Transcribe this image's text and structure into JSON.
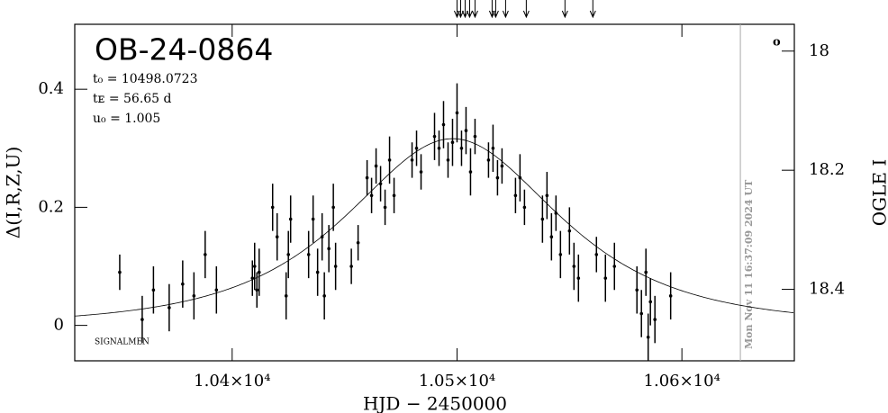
{
  "chart_data": {
    "type": "scatter",
    "title": "OB-24-0864",
    "annotations": [
      "t₀ = 10498.0723",
      "tᴇ = 56.65 d",
      "u₀ = 1.005",
      "SIGNALMEN",
      "Mon Nov 11 16:37:09 2024 UT",
      "o"
    ],
    "xlabel": "HJD − 2450000",
    "ylabel": "Δ(I,R,Z,U)",
    "y2label": "OGLE I",
    "xlim": [
      10330,
      10650
    ],
    "ylim": [
      -0.06,
      0.51
    ],
    "y2lim": [
      18.52,
      17.955
    ],
    "xticks": [
      {
        "value": 10400,
        "label": "1.04×10⁴"
      },
      {
        "value": 10500,
        "label": "1.05×10⁴"
      },
      {
        "value": 10600,
        "label": "1.06×10⁴"
      }
    ],
    "yticks": [
      0,
      0.2,
      0.4
    ],
    "y2ticks": [
      18,
      18.2,
      18.4
    ],
    "color": "#000000",
    "model": {
      "t0": 10498.0723,
      "tE": 56.65,
      "u0": 1.005
    },
    "arrows": [
      10500,
      10501.6,
      10503.6,
      10505.6,
      10508,
      10515.6,
      10517.2,
      10521.6,
      10530.8,
      10548,
      10560.4
    ],
    "now_hjd": 10626,
    "x": [
      10350,
      10360,
      10365,
      10372,
      10378,
      10383,
      10388,
      10393,
      10409,
      10410,
      10411,
      10412,
      10418,
      10420,
      10424,
      10425,
      10426,
      10434,
      10436,
      10438,
      10440,
      10441,
      10443,
      10445,
      10446,
      10453,
      10456,
      10460,
      10462,
      10464,
      10466,
      10468,
      10470,
      10472,
      10480,
      10482,
      10484,
      10490,
      10492,
      10494,
      10496,
      10498,
      10500,
      10502,
      10504,
      10506,
      10508,
      10514,
      10516,
      10518,
      10520,
      10526,
      10528,
      10530,
      10538,
      10540,
      10542,
      10544,
      10546,
      10550,
      10552,
      10554,
      10562,
      10566,
      10570,
      10580,
      10582,
      10584,
      10585,
      10586,
      10588,
      10595
    ],
    "values": [
      0.09,
      0.01,
      0.06,
      0.03,
      0.07,
      0.05,
      0.12,
      0.06,
      0.08,
      0.1,
      0.06,
      0.09,
      0.2,
      0.15,
      0.05,
      0.12,
      0.18,
      0.12,
      0.18,
      0.09,
      0.15,
      0.05,
      0.13,
      0.2,
      0.1,
      0.1,
      0.14,
      0.25,
      0.22,
      0.27,
      0.24,
      0.2,
      0.28,
      0.22,
      0.28,
      0.3,
      0.26,
      0.32,
      0.3,
      0.34,
      0.28,
      0.31,
      0.36,
      0.3,
      0.33,
      0.26,
      0.32,
      0.28,
      0.3,
      0.25,
      0.27,
      0.22,
      0.25,
      0.2,
      0.18,
      0.22,
      0.15,
      0.19,
      0.12,
      0.16,
      0.1,
      0.08,
      0.12,
      0.08,
      0.1,
      0.06,
      0.02,
      0.09,
      -0.02,
      0.04,
      0.01,
      0.05
    ],
    "errors": [
      0.03,
      0.04,
      0.04,
      0.04,
      0.04,
      0.04,
      0.04,
      0.04,
      0.03,
      0.04,
      0.03,
      0.04,
      0.04,
      0.04,
      0.04,
      0.04,
      0.04,
      0.04,
      0.04,
      0.04,
      0.04,
      0.04,
      0.04,
      0.04,
      0.04,
      0.03,
      0.03,
      0.03,
      0.03,
      0.03,
      0.03,
      0.03,
      0.04,
      0.03,
      0.03,
      0.03,
      0.03,
      0.04,
      0.03,
      0.04,
      0.03,
      0.04,
      0.05,
      0.03,
      0.04,
      0.04,
      0.03,
      0.03,
      0.04,
      0.03,
      0.03,
      0.03,
      0.04,
      0.03,
      0.04,
      0.04,
      0.04,
      0.03,
      0.04,
      0.04,
      0.04,
      0.04,
      0.03,
      0.04,
      0.04,
      0.04,
      0.04,
      0.04,
      0.04,
      0.04,
      0.04,
      0.04
    ]
  }
}
